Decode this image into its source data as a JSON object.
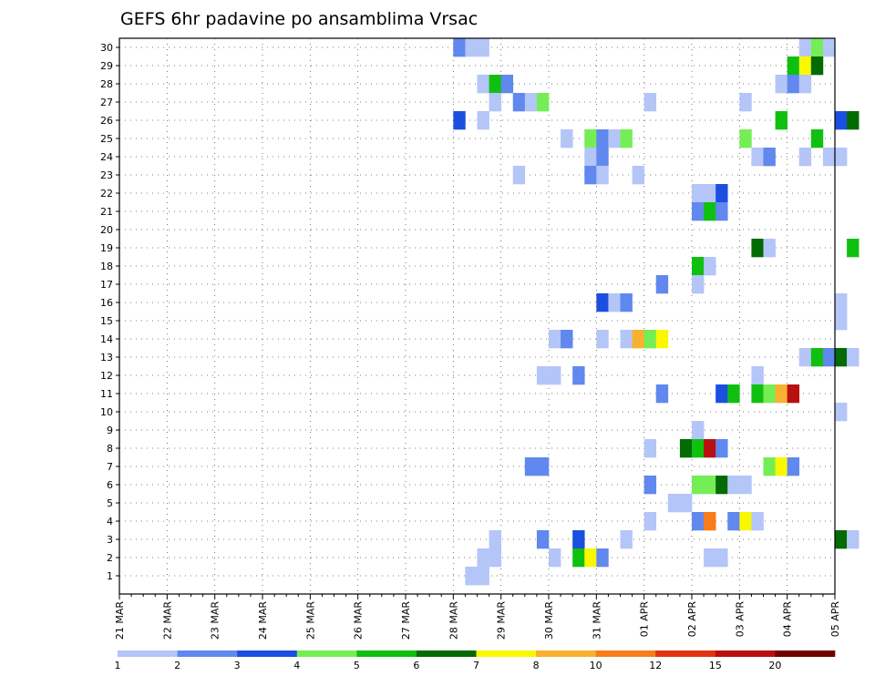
{
  "chart_data": {
    "type": "heatmap",
    "title": "GEFS 6hr padavine po ansamblima Vrsac",
    "xlabel": "",
    "ylabel": "",
    "x_tick_labels": [
      "21 MAR",
      "22 MAR",
      "23 MAR",
      "24 MAR",
      "25 MAR",
      "26 MAR",
      "27 MAR",
      "28 MAR",
      "29 MAR",
      "30 MAR",
      "31 MAR",
      "01 APR",
      "02 APR",
      "03 APR",
      "04 APR",
      "05 APR"
    ],
    "y_tick_labels": [
      "1",
      "2",
      "3",
      "4",
      "5",
      "6",
      "7",
      "8",
      "9",
      "10",
      "11",
      "12",
      "13",
      "14",
      "15",
      "16",
      "17",
      "18",
      "19",
      "20",
      "21",
      "22",
      "23",
      "24",
      "25",
      "26",
      "27",
      "28",
      "29",
      "30"
    ],
    "steps_per_day": 4,
    "grid": true,
    "legend": {
      "placement": "bottom",
      "labels": [
        "1",
        "2",
        "3",
        "4",
        "5",
        "6",
        "7",
        "8",
        "10",
        "12",
        "15",
        "20"
      ],
      "colors": [
        "#b4c5f8",
        "#6088ee",
        "#1c4fe0",
        "#74ee54",
        "#10c010",
        "#046a04",
        "#f8f800",
        "#f8b030",
        "#f87c18",
        "#e03210",
        "#b81010",
        "#700000"
      ]
    },
    "cells": [
      [
        1,
        28,
        30
      ],
      [
        2,
        28,
        30
      ],
      [
        1,
        29,
        30
      ],
      [
        1,
        29,
        1
      ],
      [
        1,
        30,
        30
      ],
      [
        1,
        29,
        1
      ],
      [
        1,
        30,
        1
      ],
      [
        1,
        57,
        30
      ],
      [
        4,
        58,
        30
      ],
      [
        1,
        59,
        30
      ],
      [
        5,
        56,
        29
      ],
      [
        7,
        57,
        29
      ],
      [
        6,
        58,
        29
      ],
      [
        1,
        30,
        28
      ],
      [
        5,
        31,
        28
      ],
      [
        2,
        32,
        28
      ],
      [
        1,
        55,
        28
      ],
      [
        2,
        56,
        28
      ],
      [
        1,
        57,
        28
      ],
      [
        1,
        31,
        27
      ],
      [
        2,
        33,
        27
      ],
      [
        1,
        34,
        27
      ],
      [
        4,
        35,
        27
      ],
      [
        1,
        44,
        27
      ],
      [
        1,
        52,
        27
      ],
      [
        3,
        28,
        26
      ],
      [
        1,
        30,
        26
      ],
      [
        5,
        55,
        26
      ],
      [
        3,
        60,
        26
      ],
      [
        6,
        61,
        26
      ],
      [
        1,
        37,
        25
      ],
      [
        4,
        39,
        25
      ],
      [
        2,
        40,
        25
      ],
      [
        1,
        41,
        25
      ],
      [
        4,
        42,
        25
      ],
      [
        4,
        52,
        25
      ],
      [
        5,
        58,
        25
      ],
      [
        1,
        39,
        24
      ],
      [
        2,
        40,
        24
      ],
      [
        1,
        53,
        24
      ],
      [
        2,
        54,
        24
      ],
      [
        1,
        57,
        24
      ],
      [
        1,
        59,
        24
      ],
      [
        1,
        60,
        24
      ],
      [
        1,
        33,
        23
      ],
      [
        2,
        39,
        23
      ],
      [
        1,
        40,
        23
      ],
      [
        1,
        43,
        23
      ],
      [
        1,
        48,
        22
      ],
      [
        1,
        49,
        22
      ],
      [
        3,
        50,
        22
      ],
      [
        2,
        48,
        21
      ],
      [
        5,
        49,
        21
      ],
      [
        2,
        50,
        21
      ],
      [
        6,
        53,
        19
      ],
      [
        1,
        54,
        19
      ],
      [
        5,
        61,
        19
      ],
      [
        5,
        48,
        18
      ],
      [
        1,
        49,
        18
      ],
      [
        2,
        45,
        17
      ],
      [
        1,
        48,
        17
      ],
      [
        3,
        40,
        16
      ],
      [
        1,
        41,
        16
      ],
      [
        2,
        42,
        16
      ],
      [
        1,
        60,
        16
      ],
      [
        1,
        60,
        15
      ],
      [
        1,
        36,
        14
      ],
      [
        2,
        37,
        14
      ],
      [
        1,
        40,
        14
      ],
      [
        1,
        42,
        14
      ],
      [
        8,
        43,
        14
      ],
      [
        4,
        44,
        14
      ],
      [
        7,
        45,
        14
      ],
      [
        1,
        57,
        13
      ],
      [
        5,
        58,
        13
      ],
      [
        2,
        59,
        13
      ],
      [
        6,
        60,
        13
      ],
      [
        1,
        61,
        13
      ],
      [
        1,
        35,
        12
      ],
      [
        1,
        36,
        12
      ],
      [
        2,
        38,
        12
      ],
      [
        1,
        53,
        12
      ],
      [
        2,
        45,
        11
      ],
      [
        3,
        50,
        11
      ],
      [
        5,
        51,
        11
      ],
      [
        5,
        53,
        11
      ],
      [
        4,
        54,
        11
      ],
      [
        8,
        55,
        11
      ],
      [
        11,
        56,
        11
      ],
      [
        1,
        60,
        10
      ],
      [
        1,
        48,
        9
      ],
      [
        1,
        44,
        8
      ],
      [
        6,
        47,
        8
      ],
      [
        5,
        48,
        8
      ],
      [
        11,
        49,
        8
      ],
      [
        2,
        50,
        8
      ],
      [
        2,
        34,
        7
      ],
      [
        2,
        35,
        7
      ],
      [
        4,
        54,
        7
      ],
      [
        7,
        55,
        7
      ],
      [
        2,
        56,
        7
      ],
      [
        2,
        44,
        6
      ],
      [
        4,
        48,
        6
      ],
      [
        4,
        49,
        6
      ],
      [
        6,
        50,
        6
      ],
      [
        1,
        51,
        6
      ],
      [
        1,
        52,
        6
      ],
      [
        1,
        46,
        5
      ],
      [
        1,
        47,
        5
      ],
      [
        1,
        44,
        4
      ],
      [
        2,
        48,
        4
      ],
      [
        9,
        49,
        4
      ],
      [
        2,
        51,
        4
      ],
      [
        7,
        52,
        4
      ],
      [
        1,
        53,
        4
      ],
      [
        1,
        31,
        3
      ],
      [
        2,
        35,
        3
      ],
      [
        3,
        38,
        3
      ],
      [
        1,
        42,
        3
      ],
      [
        6,
        60,
        3
      ],
      [
        1,
        61,
        3
      ],
      [
        1,
        30,
        2
      ],
      [
        1,
        31,
        2
      ],
      [
        1,
        36,
        2
      ],
      [
        5,
        38,
        2
      ],
      [
        7,
        39,
        2
      ],
      [
        2,
        40,
        2
      ],
      [
        1,
        49,
        2
      ],
      [
        1,
        50,
        2
      ]
    ]
  }
}
